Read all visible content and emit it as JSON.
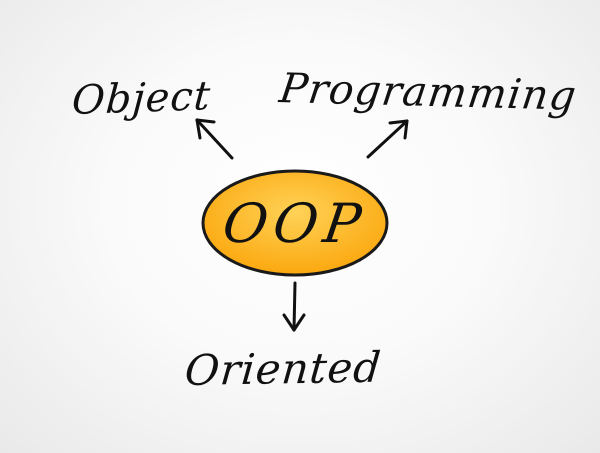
{
  "diagram": {
    "center": {
      "label": "OOP",
      "fill_color": "#FBA80F",
      "highlight_color": "#FFD257",
      "stroke_color": "#1A1A1A"
    },
    "branches": [
      {
        "label": "Object",
        "direction": "up-left"
      },
      {
        "label": "Programming",
        "direction": "up-right"
      },
      {
        "label": "Oriented",
        "direction": "down"
      }
    ],
    "text_color": "#111111"
  }
}
